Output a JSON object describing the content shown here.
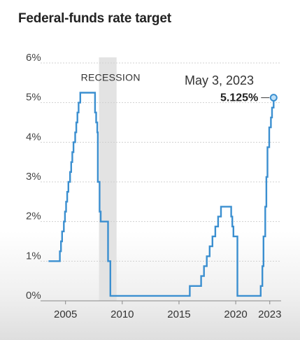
{
  "title": "Federal-funds rate target",
  "colors": {
    "line": "#3b8fd0",
    "recession": "#e3e3e3",
    "grid": "#d0d0d0"
  },
  "chart_data": {
    "type": "line",
    "title": "Federal-funds rate target",
    "ylim": [
      0,
      6
    ],
    "xlim": [
      2002.8,
      2024.0
    ],
    "y_ticks": [
      {
        "value": 0,
        "label": "0%"
      },
      {
        "value": 1,
        "label": "1%"
      },
      {
        "value": 2,
        "label": "2%"
      },
      {
        "value": 3,
        "label": "3%"
      },
      {
        "value": 4,
        "label": "4%"
      },
      {
        "value": 5,
        "label": "5%"
      },
      {
        "value": 6,
        "label": "6%"
      }
    ],
    "x_ticks": [
      {
        "value": 2005,
        "label": "2005"
      },
      {
        "value": 2010,
        "label": "2010"
      },
      {
        "value": 2015,
        "label": "2015"
      },
      {
        "value": 2020,
        "label": "2020"
      },
      {
        "value": 2023,
        "label": "2023"
      }
    ],
    "grid": "horizontal",
    "recession": {
      "label": "RECESSION",
      "start": 2007.95,
      "end": 2009.5
    },
    "annotation": {
      "date": "May 3, 2023",
      "value_label": "5.125%",
      "x": 2023.34,
      "y": 5.125
    },
    "series": [
      {
        "x": [
          2003.5,
          2004.5,
          2004.6,
          2004.7,
          2004.85,
          2004.95,
          2005.05,
          2005.15,
          2005.25,
          2005.4,
          2005.5,
          2005.6,
          2005.7,
          2005.85,
          2005.95,
          2006.05,
          2006.15,
          2006.3,
          2006.4,
          2006.5,
          2007.6,
          2007.7,
          2007.8,
          2007.85,
          2008.0,
          2008.1,
          2008.25,
          2008.3,
          2008.75,
          2008.8,
          2008.95,
          2015.95,
          2016.95,
          2017.2,
          2017.45,
          2017.7,
          2017.95,
          2018.2,
          2018.45,
          2018.7,
          2018.95,
          2019.6,
          2019.7,
          2019.8,
          2020.15,
          2020.2,
          2022.2,
          2022.35,
          2022.45,
          2022.6,
          2022.7,
          2022.8,
          2022.95,
          2023.1,
          2023.2,
          2023.34
        ],
        "y": [
          1.0,
          1.25,
          1.5,
          1.75,
          2.0,
          2.25,
          2.5,
          2.75,
          3.0,
          3.25,
          3.5,
          3.75,
          4.0,
          4.25,
          4.5,
          4.75,
          5.0,
          5.25,
          5.25,
          5.25,
          4.75,
          4.5,
          4.25,
          3.0,
          2.25,
          2.0,
          2.0,
          2.0,
          1.0,
          1.0,
          0.125,
          0.375,
          0.625,
          0.875,
          1.125,
          1.375,
          1.625,
          1.875,
          2.125,
          2.375,
          2.375,
          2.125,
          1.875,
          1.625,
          0.125,
          0.125,
          0.375,
          0.875,
          1.625,
          2.375,
          3.125,
          3.875,
          4.375,
          4.625,
          4.875,
          5.125
        ]
      }
    ]
  }
}
